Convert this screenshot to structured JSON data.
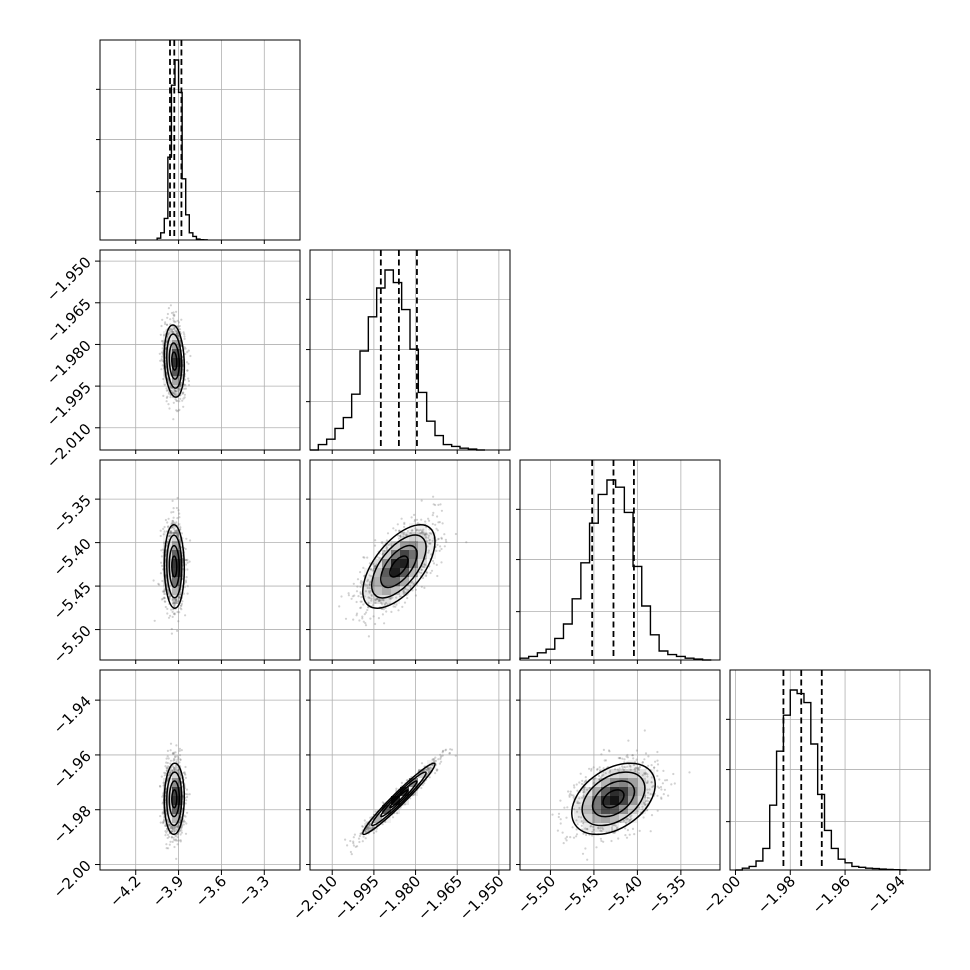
{
  "chart_data": {
    "type": "corner",
    "grid": true,
    "parameters": [
      {
        "range": [
          -4.45,
          -3.05
        ],
        "ticks": [
          -4.2,
          -3.9,
          -3.6,
          -3.3
        ],
        "tick_labels": [
          "−4.2",
          "−3.9",
          "−3.6",
          "−3.3"
        ],
        "quantiles": [
          -3.96,
          -3.93,
          -3.88
        ],
        "median": -3.93,
        "sigma": 0.035,
        "hist_bins": [
          -4.05,
          -4.025,
          -4.0,
          -3.975,
          -3.95,
          -3.925,
          -3.9,
          -3.875,
          -3.85,
          -3.825,
          -3.8,
          -3.775,
          -3.75,
          -3.725,
          -3.7
        ],
        "hist_counts": [
          0.01,
          0.04,
          0.12,
          0.46,
          0.86,
          1.0,
          0.82,
          0.34,
          0.14,
          0.04,
          0.02,
          0.005,
          0.002,
          0.001
        ]
      },
      {
        "range": [
          -2.018,
          -1.946
        ],
        "ticks": [
          -2.01,
          -1.995,
          -1.98,
          -1.965,
          -1.95
        ],
        "tick_labels": [
          "−2.010",
          "−1.995",
          "−1.980",
          "−1.965",
          "−1.950"
        ],
        "quantiles": [
          -1.9925,
          -1.986,
          -1.9795
        ],
        "median": -1.986,
        "sigma": 0.0065,
        "hist_bins": [
          -2.018,
          -2.015,
          -2.012,
          -2.009,
          -2.006,
          -2.003,
          -2.0,
          -1.997,
          -1.994,
          -1.991,
          -1.988,
          -1.985,
          -1.982,
          -1.979,
          -1.976,
          -1.973,
          -1.97,
          -1.967,
          -1.964,
          -1.961,
          -1.958,
          -1.955
        ],
        "hist_counts": [
          0.0,
          0.03,
          0.06,
          0.12,
          0.18,
          0.31,
          0.55,
          0.74,
          0.9,
          1.0,
          0.93,
          0.78,
          0.56,
          0.32,
          0.16,
          0.08,
          0.03,
          0.02,
          0.01,
          0.005,
          0.0
        ]
      },
      {
        "range": [
          -5.535,
          -5.305
        ],
        "ticks": [
          -5.5,
          -5.45,
          -5.4,
          -5.35
        ],
        "tick_labels": [
          "−5.50",
          "−5.45",
          "−5.40",
          "−5.35"
        ],
        "quantiles": [
          -5.452,
          -5.4275,
          -5.404
        ],
        "median": -5.4275,
        "sigma": 0.024,
        "hist_bins": [
          -5.535,
          -5.525,
          -5.515,
          -5.505,
          -5.495,
          -5.485,
          -5.475,
          -5.465,
          -5.455,
          -5.445,
          -5.435,
          -5.425,
          -5.415,
          -5.405,
          -5.395,
          -5.385,
          -5.375,
          -5.365,
          -5.355,
          -5.345,
          -5.335,
          -5.325,
          -5.315
        ],
        "hist_counts": [
          0.01,
          0.02,
          0.04,
          0.06,
          0.12,
          0.2,
          0.34,
          0.54,
          0.76,
          0.92,
          1.0,
          0.96,
          0.82,
          0.52,
          0.3,
          0.14,
          0.05,
          0.03,
          0.02,
          0.01,
          0.005,
          0.0
        ]
      },
      {
        "range": [
          -2.002,
          -1.929
        ],
        "ticks": [
          -2.0,
          -1.98,
          -1.96,
          -1.94
        ],
        "tick_labels": [
          "−2.00",
          "−1.98",
          "−1.96",
          "−1.94"
        ],
        "quantiles": [
          -1.9825,
          -1.976,
          -1.9685
        ],
        "median": -1.976,
        "sigma": 0.0065,
        "hist_bins": [
          -2.0,
          -1.9975,
          -1.995,
          -1.9925,
          -1.99,
          -1.9875,
          -1.985,
          -1.9825,
          -1.98,
          -1.9775,
          -1.975,
          -1.9725,
          -1.97,
          -1.9675,
          -1.965,
          -1.9625,
          -1.96,
          -1.9575,
          -1.955,
          -1.9525,
          -1.95,
          -1.9475,
          -1.945,
          -1.9425,
          -1.94,
          -1.9375
        ],
        "hist_counts": [
          0.0,
          0.01,
          0.02,
          0.05,
          0.12,
          0.36,
          0.66,
          0.86,
          1.0,
          0.98,
          0.93,
          0.7,
          0.42,
          0.22,
          0.12,
          0.06,
          0.04,
          0.02,
          0.015,
          0.01,
          0.008,
          0.005,
          0.003,
          0.002,
          0.0
        ]
      }
    ],
    "correlations": [
      {
        "i": 1,
        "j": 0,
        "rho": -0.15
      },
      {
        "i": 2,
        "j": 0,
        "rho": -0.05
      },
      {
        "i": 2,
        "j": 1,
        "rho": 0.6
      },
      {
        "i": 3,
        "j": 0,
        "rho": 0.05
      },
      {
        "i": 3,
        "j": 1,
        "rho": 0.97
      },
      {
        "i": 3,
        "j": 2,
        "rho": 0.4
      }
    ],
    "contour_levels_sigma": [
      0.5,
      1.0,
      1.5,
      2.0
    ],
    "colors": {
      "line": "#000000",
      "grid": "#b0b0b0",
      "points": "#7a7a7a",
      "density": "#000000"
    }
  }
}
